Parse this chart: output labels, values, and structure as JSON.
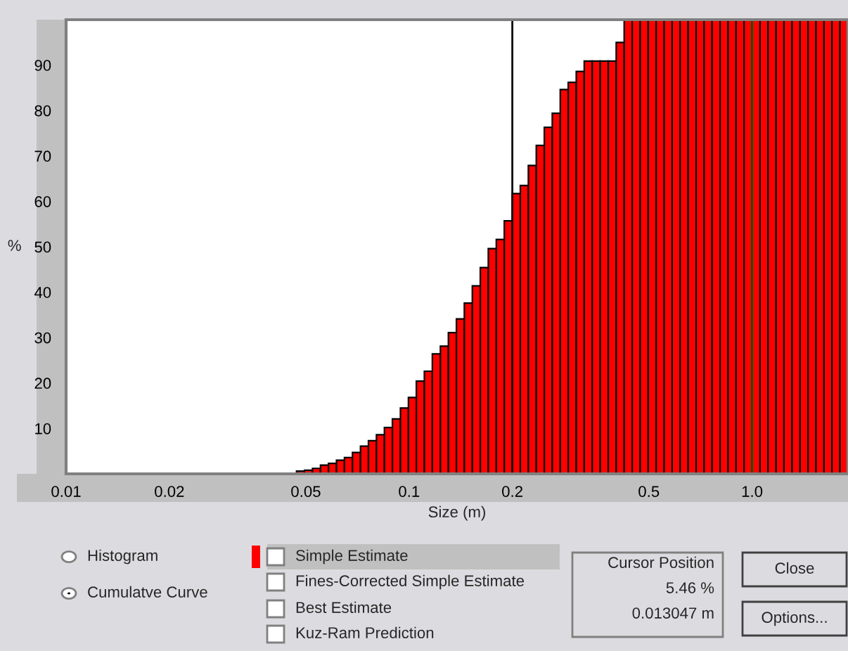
{
  "chart_data": {
    "type": "histogram",
    "xlabel": "Size (m)",
    "ylabel": "%",
    "color": "#ff0000",
    "log": "x",
    "bins": [
      0.03791,
      0.03999,
      0.04219,
      0.04452,
      0.04697,
      0.04956,
      0.05229,
      0.05517,
      0.05821,
      0.06142,
      0.0648,
      0.06839,
      0.07216,
      0.07612,
      0.08032,
      0.08474,
      0.08941,
      0.09436,
      0.09956,
      0.105,
      0.1108,
      0.1169,
      0.1234,
      0.1302,
      0.1374,
      0.1449,
      0.1529,
      0.1613,
      0.1702,
      0.1796,
      0.1895,
      0.2,
      0.211,
      0.2227,
      0.2349,
      0.2479,
      0.2615,
      0.2759,
      0.2911,
      0.3072,
      0.3241,
      0.342,
      0.3608,
      0.3807,
      0.4017,
      0.4238,
      0.4472,
      0.4718,
      0.4978,
      0.5253,
      0.5542,
      0.5848,
      0.617,
      0.651,
      0.6869,
      0.7247,
      0.7646,
      0.8068,
      0.8512,
      0.8982,
      0.9477,
      1.0,
      1.055,
      1.113,
      1.175,
      1.239,
      1.308,
      1.38,
      1.456,
      1.536,
      1.621,
      1.71,
      1.804,
      1.904
    ],
    "values": [
      null,
      null,
      null,
      null,
      0.6,
      0.8,
      1.2,
      1.9,
      2.3,
      3.0,
      3.6,
      4.7,
      6.1,
      7.3,
      8.6,
      10.2,
      12.1,
      14.5,
      16.8,
      20.4,
      22.6,
      26.4,
      28.1,
      31.1,
      34.1,
      37.6,
      41.4,
      45.4,
      49.6,
      51.6,
      55.7,
      61.7,
      63.5,
      67.9,
      72.3,
      76.3,
      79.4,
      84.6,
      86.2,
      88.6,
      90.9,
      90.9,
      90.9,
      90.9,
      95.0,
      100,
      100,
      100,
      100,
      100,
      100,
      100,
      100,
      100,
      100,
      100,
      100,
      100,
      100,
      100,
      100,
      100,
      100,
      100,
      100,
      100,
      100,
      100,
      100,
      100,
      100,
      100,
      100
    ],
    "xlim": [
      0.01,
      1.904
    ],
    "ylim": [
      0,
      100
    ],
    "xticks": [
      0.01,
      0.02,
      0.05,
      0.1,
      0.2,
      0.5,
      {
        "value": 1,
        "label": "1.0"
      }
    ],
    "yticks": [
      10,
      20,
      30,
      40,
      50,
      60,
      70,
      80,
      90
    ],
    "ref_lines": [
      {
        "axis": "x",
        "value": 0.2,
        "color": "#000000"
      },
      {
        "axis": "x",
        "value": 1,
        "color": "#006400"
      }
    ],
    "annotations": [
      "Histogram",
      "Cumulatve Curve",
      "Simple Estimate",
      "Fines-Corrected Simple Estimate",
      "Best Estimate",
      "Kuz-Ram Prediction",
      "Cursor Position",
      "5.46 %",
      "0.013047 m",
      "Close",
      "Options..."
    ]
  }
}
